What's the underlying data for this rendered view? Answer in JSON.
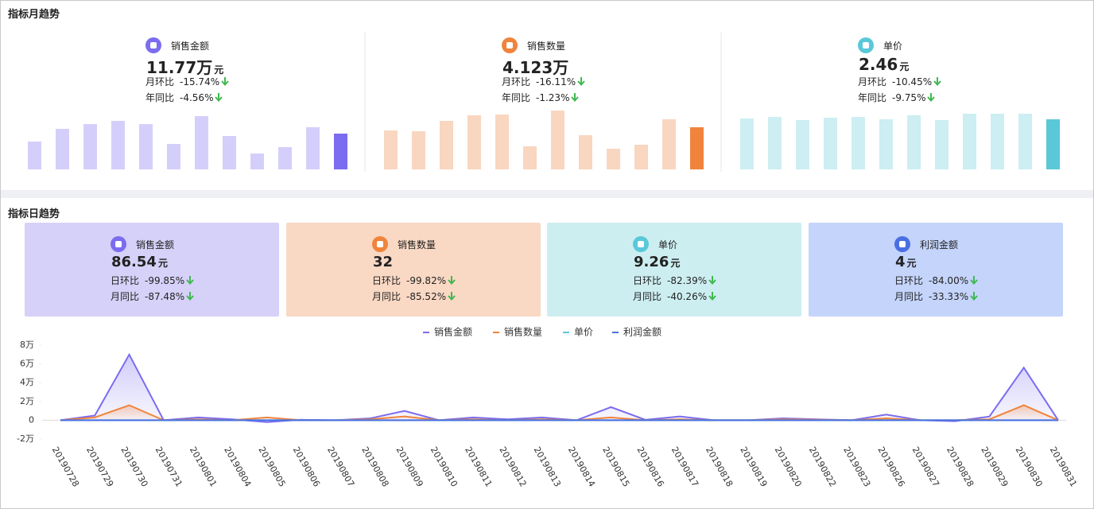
{
  "monthly": {
    "title": "指标月趋势",
    "panels": [
      {
        "label": "销售金额",
        "value": "11.77万",
        "unit": "元",
        "rows": [
          {
            "label": "月环比",
            "value": "-15.74%"
          },
          {
            "label": "年同比",
            "value": "-4.56%"
          }
        ]
      },
      {
        "label": "销售数量",
        "value": "4.123万",
        "rows": [
          {
            "label": "月环比",
            "value": "-16.11%"
          },
          {
            "label": "年同比",
            "value": "-1.23%"
          }
        ]
      },
      {
        "label": "单价",
        "value": "2.46",
        "unit": "元",
        "rows": [
          {
            "label": "月环比",
            "value": "-10.45%"
          },
          {
            "label": "年同比",
            "value": "-9.75%"
          }
        ]
      }
    ]
  },
  "daily": {
    "title": "指标日趋势",
    "cards": [
      {
        "label": "销售金额",
        "value": "86.54",
        "unit": "元",
        "color": "#d6d1f8",
        "rows": [
          {
            "label": "日环比",
            "value": "-99.85%"
          },
          {
            "label": "月同比",
            "value": "-87.48%"
          }
        ]
      },
      {
        "label": "销售数量",
        "value": "32",
        "color": "#f9d8c4",
        "rows": [
          {
            "label": "日环比",
            "value": "-99.82%"
          },
          {
            "label": "月同比",
            "value": "-85.52%"
          }
        ]
      },
      {
        "label": "单价",
        "value": "9.26",
        "unit": "元",
        "color": "#cdeef1",
        "rows": [
          {
            "label": "日环比",
            "value": "-82.39%"
          },
          {
            "label": "月同比",
            "value": "-40.26%"
          }
        ]
      },
      {
        "label": "利润金额",
        "value": "4",
        "unit": "元",
        "color": "#c4d4fb",
        "rows": [
          {
            "label": "日环比",
            "value": "-84.00%"
          },
          {
            "label": "月同比",
            "value": "-33.33%"
          }
        ]
      }
    ]
  },
  "chart_data": [
    {
      "type": "bar",
      "values": [
        35,
        51,
        57,
        61,
        57,
        32,
        67,
        42,
        20,
        28,
        53,
        45
      ],
      "color": "#d4cffa",
      "highlight_color": "#7b6cf0"
    },
    {
      "type": "bar",
      "values": [
        49,
        48,
        61,
        68,
        69,
        29,
        74,
        43,
        26,
        31,
        63,
        53
      ],
      "color": "#f9d6c0",
      "highlight_color": "#f0843c"
    },
    {
      "type": "bar",
      "values": [
        64,
        66,
        62,
        65,
        66,
        63,
        68,
        62,
        70,
        70,
        70,
        63
      ],
      "color": "#cdeef2",
      "highlight_color": "#5ac8d8"
    },
    {
      "type": "line",
      "categories": [
        "20190728",
        "20190729",
        "20190730",
        "20190731",
        "20190801",
        "20190804",
        "20190805",
        "20190806",
        "20190807",
        "20190808",
        "20190809",
        "20190810",
        "20190811",
        "20190812",
        "20190813",
        "20190814",
        "20190815",
        "20190816",
        "20190817",
        "20190818",
        "20190819",
        "20190820",
        "20190822",
        "20190823",
        "20190826",
        "20190827",
        "20190828",
        "20190829",
        "20190830",
        "20190831"
      ],
      "series": [
        {
          "name": "销售金额",
          "color": "#7b6cf0",
          "area": true,
          "values": [
            0,
            5000,
            70000,
            0,
            3000,
            1000,
            -2000,
            500,
            0,
            2000,
            10000,
            0,
            3000,
            1000,
            3000,
            0,
            14000,
            500,
            4000,
            0,
            0,
            2000,
            1000,
            0,
            6000,
            0,
            -1000,
            4000,
            56000,
            0
          ]
        },
        {
          "name": "销售数量",
          "color": "#f0843c",
          "area": true,
          "values": [
            0,
            3000,
            16000,
            0,
            1000,
            0,
            3000,
            0,
            0,
            1000,
            4000,
            0,
            1000,
            0,
            1000,
            0,
            3000,
            0,
            1000,
            0,
            0,
            1000,
            500,
            0,
            2000,
            0,
            0,
            1000,
            16000,
            0
          ]
        },
        {
          "name": "单价",
          "color": "#5ac8d8",
          "values": [
            0,
            0,
            0,
            0,
            0,
            0,
            0,
            0,
            0,
            0,
            0,
            0,
            0,
            0,
            0,
            0,
            0,
            0,
            0,
            0,
            0,
            0,
            0,
            0,
            0,
            0,
            0,
            0,
            0,
            0
          ]
        },
        {
          "name": "利润金额",
          "color": "#4a6fe3",
          "values": [
            0,
            0,
            0,
            0,
            0,
            0,
            0,
            0,
            0,
            0,
            0,
            0,
            0,
            0,
            0,
            0,
            0,
            0,
            0,
            0,
            0,
            0,
            0,
            0,
            0,
            0,
            0,
            0,
            0,
            0
          ]
        }
      ],
      "ylim": [
        -20000,
        80000
      ],
      "yticks": [
        {
          "value": 80000,
          "label": "8万"
        },
        {
          "value": 60000,
          "label": "6万"
        },
        {
          "value": 40000,
          "label": "4万"
        },
        {
          "value": 20000,
          "label": "2万"
        },
        0,
        {
          "value": -20000,
          "label": "-2万"
        }
      ],
      "legend": "top"
    }
  ]
}
